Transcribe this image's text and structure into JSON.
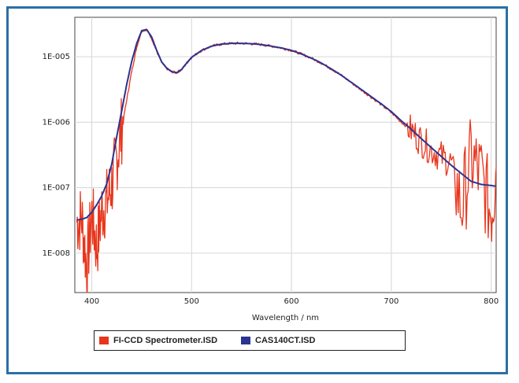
{
  "chart_data": {
    "type": "line",
    "xlabel": "Wavelength / nm",
    "ylabel": "",
    "xlim": [
      383,
      805
    ],
    "ylim": [
      2.5e-09,
      4e-05
    ],
    "yscale": "log",
    "x_ticks": [
      400,
      500,
      600,
      700,
      800
    ],
    "x_tick_labels": [
      "400",
      "500",
      "600",
      "700",
      "800"
    ],
    "y_ticks": [
      1e-08,
      1e-07,
      1e-06,
      1e-05
    ],
    "y_tick_labels": [
      "1E-008",
      "1E-007",
      "1E-006",
      "1E-005"
    ],
    "grid": true,
    "legend_position": "bottom",
    "series": [
      {
        "name": "FI-CCD Spectrometer.ISD",
        "color": "#e8361c",
        "style": "noisy",
        "x": [
          385,
          390,
          395,
          400,
          405,
          410,
          415,
          420,
          425,
          430,
          435,
          440,
          445,
          450,
          455,
          460,
          465,
          470,
          475,
          480,
          485,
          490,
          495,
          500,
          510,
          520,
          530,
          540,
          550,
          560,
          570,
          580,
          590,
          600,
          610,
          620,
          630,
          640,
          650,
          660,
          670,
          680,
          690,
          700,
          710,
          720,
          730,
          740,
          750,
          760,
          770,
          780,
          790,
          800,
          805
        ],
        "y": [
          3e-08,
          3.5e-08,
          6e-09,
          4e-08,
          1.2e-08,
          4.5e-08,
          6e-08,
          1.1e-07,
          2.8e-07,
          8e-07,
          2.2e-06,
          6e-06,
          1.4e-05,
          2.5e-05,
          2.6e-05,
          1.9e-05,
          1.2e-05,
          8.2e-06,
          6.6e-06,
          5.9e-06,
          5.7e-06,
          6.4e-06,
          8e-06,
          9.8e-06,
          1.25e-05,
          1.45e-05,
          1.56e-05,
          1.6e-05,
          1.6e-05,
          1.58e-05,
          1.53e-05,
          1.45e-05,
          1.36e-05,
          1.25e-05,
          1.1e-05,
          9.5e-06,
          8e-06,
          6.5e-06,
          5.2e-06,
          4e-06,
          3.1e-06,
          2.4e-06,
          1.85e-06,
          1.4e-06,
          1e-06,
          7.5e-07,
          5.2e-07,
          3.8e-07,
          3e-07,
          2.4e-07,
          5e-08,
          2.7e-07,
          1.5e-07,
          4e-08,
          2e-07
        ]
      },
      {
        "name": "CAS140CT.ISD",
        "color": "#2c3391",
        "style": "smooth",
        "x": [
          385,
          390,
          395,
          400,
          405,
          410,
          415,
          420,
          425,
          430,
          435,
          440,
          445,
          450,
          455,
          460,
          465,
          470,
          475,
          480,
          485,
          490,
          495,
          500,
          510,
          520,
          530,
          540,
          550,
          560,
          570,
          580,
          590,
          600,
          610,
          620,
          630,
          640,
          650,
          660,
          670,
          680,
          690,
          700,
          710,
          720,
          730,
          740,
          750,
          760,
          770,
          780,
          790,
          800,
          805
        ],
        "y": [
          3.2e-08,
          3.3e-08,
          3.5e-08,
          4.2e-08,
          5.5e-08,
          7.5e-08,
          1.15e-07,
          2.3e-07,
          6e-07,
          1.5e-06,
          3.8e-06,
          8.5e-06,
          1.6e-05,
          2.5e-05,
          2.6e-05,
          2e-05,
          1.25e-05,
          8.3e-06,
          6.7e-06,
          5.9e-06,
          5.7e-06,
          6.4e-06,
          8e-06,
          9.8e-06,
          1.25e-05,
          1.45e-05,
          1.56e-05,
          1.6e-05,
          1.6e-05,
          1.58e-05,
          1.53e-05,
          1.45e-05,
          1.36e-05,
          1.25e-05,
          1.1e-05,
          9.5e-06,
          8e-06,
          6.5e-06,
          5.2e-06,
          4.05e-06,
          3.15e-06,
          2.45e-06,
          1.9e-06,
          1.45e-06,
          1.05e-06,
          7.8e-07,
          5.6e-07,
          4.1e-07,
          3e-07,
          2.2e-07,
          1.65e-07,
          1.25e-07,
          1.12e-07,
          1.08e-07,
          1.05e-07
        ]
      }
    ]
  }
}
